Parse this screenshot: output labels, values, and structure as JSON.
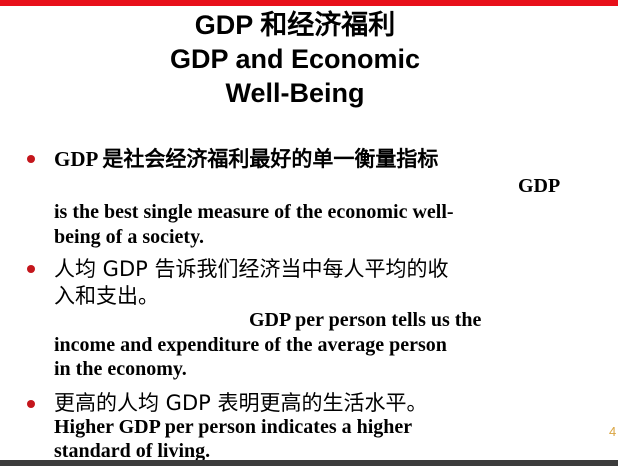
{
  "title": {
    "line1": "GDP 和经济福利",
    "line2": "GDP and Economic",
    "line3": "Well-Being"
  },
  "bullets": [
    {
      "zh": "GDP 是社会经济福利最好的单一衡量指标",
      "en_lead": "GDP",
      "en_line1": "is the best single measure of the economic well-",
      "en_line2": "being of a society."
    },
    {
      "zh_line1": "人均 GDP 告诉我们经济当中每人平均的收",
      "zh_line2": "入和支出。",
      "en_line1": "GDP per person tells us the",
      "en_line2": "income and expenditure of the average person",
      "en_line3": "in the economy."
    },
    {
      "zh": "更高的人均 GDP 表明更高的生活水平。",
      "en_line1": "Higher GDP per person indicates a higher",
      "en_line2": "standard of living."
    }
  ],
  "page_number": "4",
  "colors": {
    "accent_red": "#e8101a",
    "bullet_red": "#c4161c",
    "text": "#000000",
    "page_number": "#d9a441"
  }
}
